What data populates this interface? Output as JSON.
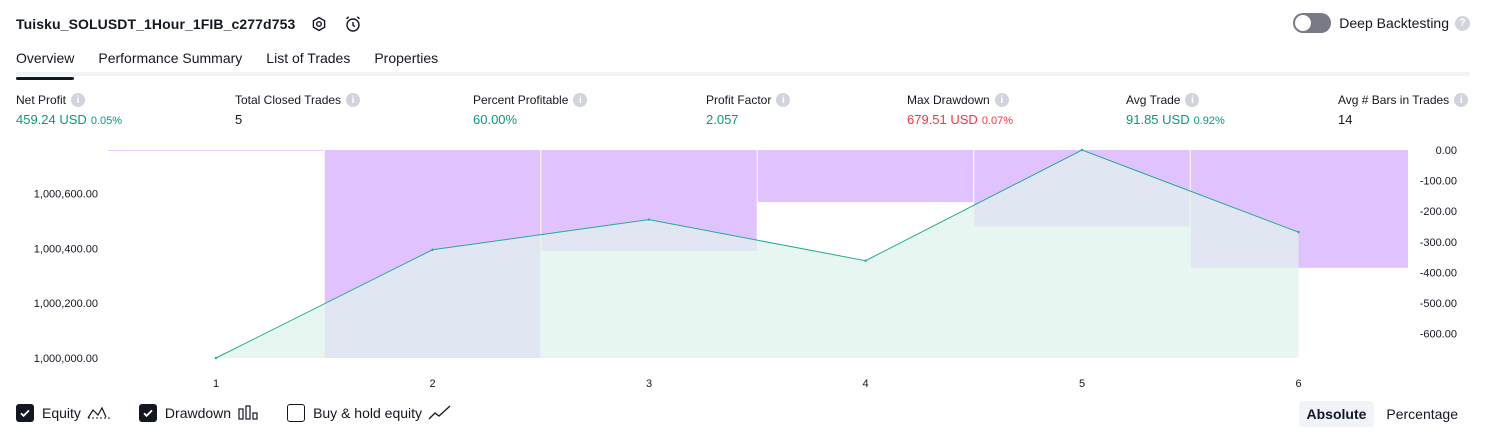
{
  "header": {
    "title": "Tuisku_SOLUSDT_1Hour_1FIB_c277d753",
    "icons": [
      "settings-icon",
      "alarm-add-icon"
    ]
  },
  "deep_backtesting": {
    "label": "Deep Backtesting",
    "enabled": false,
    "help_icon": "question-icon"
  },
  "tabs": [
    {
      "label": "Overview",
      "active": true
    },
    {
      "label": "Performance Summary",
      "active": false
    },
    {
      "label": "List of Trades",
      "active": false
    },
    {
      "label": "Properties",
      "active": false
    }
  ],
  "stats": [
    {
      "label": "Net Profit",
      "value": "459.24 USD",
      "pct": "0.05%",
      "tone": "pos"
    },
    {
      "label": "Total Closed Trades",
      "value": "5",
      "pct": "",
      "tone": "neu"
    },
    {
      "label": "Percent Profitable",
      "value": "60.00%",
      "pct": "",
      "tone": "pos"
    },
    {
      "label": "Profit Factor",
      "value": "2.057",
      "pct": "",
      "tone": "pos"
    },
    {
      "label": "Max Drawdown",
      "value": "679.51 USD",
      "pct": "0.07%",
      "tone": "neg"
    },
    {
      "label": "Avg Trade",
      "value": "91.85 USD",
      "pct": "0.92%",
      "tone": "pos"
    },
    {
      "label": "Avg # Bars in Trades",
      "value": "14",
      "pct": "",
      "tone": "neu"
    }
  ],
  "chart_data": {
    "type": "area",
    "x": [
      1,
      2,
      3,
      4,
      5,
      6
    ],
    "x_tick_labels": [
      "1",
      "2",
      "3",
      "4",
      "5",
      "6"
    ],
    "series": [
      {
        "values": [
          1000000,
          1000395,
          1000505,
          1000355,
          1000759,
          1000459
        ]
      }
    ],
    "drawdown": {
      "type": "bar",
      "values": [
        0,
        -679.51,
        -330,
        -170,
        -250,
        -385
      ]
    },
    "left_axis": {
      "ticks": [
        1000000,
        1000200,
        1000400,
        1000600
      ],
      "tick_labels": [
        "1,000,000.00",
        "1,000,200.00",
        "1,000,400.00",
        "1,000,600.00"
      ],
      "ylim": [
        1000000,
        1000759
      ]
    },
    "right_axis": {
      "ticks": [
        0,
        -100,
        -200,
        -300,
        -400,
        -500,
        -600
      ],
      "tick_labels": [
        "0.00",
        "-100.00",
        "-200.00",
        "-300.00",
        "-400.00",
        "-500.00",
        "-600.00"
      ],
      "ylim": [
        -679.51,
        0
      ]
    },
    "colors": {
      "equity_line": "#22ab94",
      "equity_fill": "#e0f3ee",
      "drawdown": "#d8b4fe"
    },
    "grid": false
  },
  "legend": [
    {
      "label": "Equity",
      "checked": true,
      "icon": "equity-line-icon"
    },
    {
      "label": "Drawdown",
      "checked": true,
      "icon": "drawdown-bars-icon"
    },
    {
      "label": "Buy & hold equity",
      "checked": false,
      "icon": "buyhold-line-icon"
    }
  ],
  "mode": [
    {
      "label": "Absolute",
      "active": true
    },
    {
      "label": "Percentage",
      "active": false
    }
  ]
}
